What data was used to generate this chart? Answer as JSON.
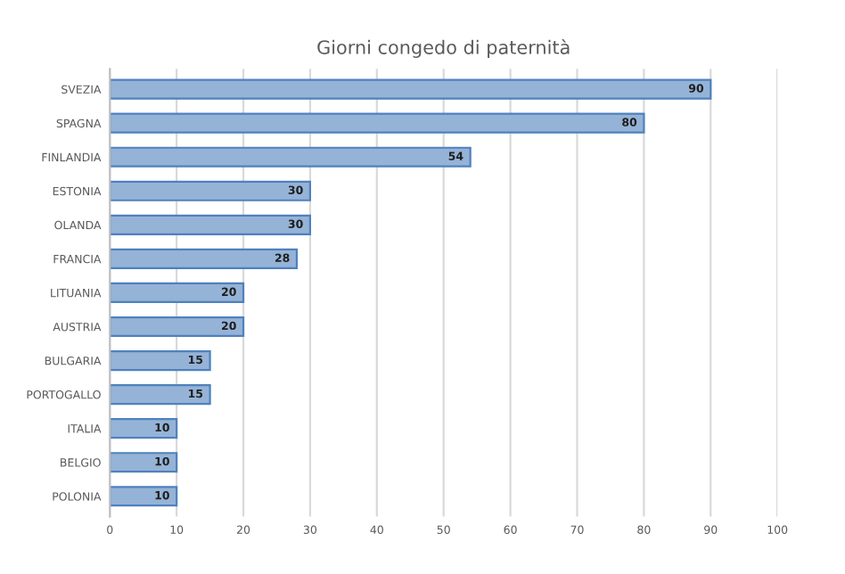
{
  "chart_data": {
    "type": "bar",
    "orientation": "horizontal",
    "title": "Giorni congedo di paternità",
    "categories": [
      "SVEZIA",
      "SPAGNA",
      "FINLANDIA",
      "ESTONIA",
      "OLANDA",
      "FRANCIA",
      "LITUANIA",
      "AUSTRIA",
      "BULGARIA",
      "PORTOGALLO",
      "ITALIA",
      "BELGIO",
      "POLONIA"
    ],
    "values": [
      90,
      80,
      54,
      30,
      30,
      28,
      20,
      20,
      15,
      15,
      10,
      10,
      10
    ],
    "color": "#95b3d7",
    "xlim": [
      0,
      100
    ],
    "xticks": [
      0,
      10,
      20,
      30,
      40,
      50,
      60,
      70,
      80,
      90,
      100
    ],
    "grid": "x",
    "data_labels": true
  }
}
